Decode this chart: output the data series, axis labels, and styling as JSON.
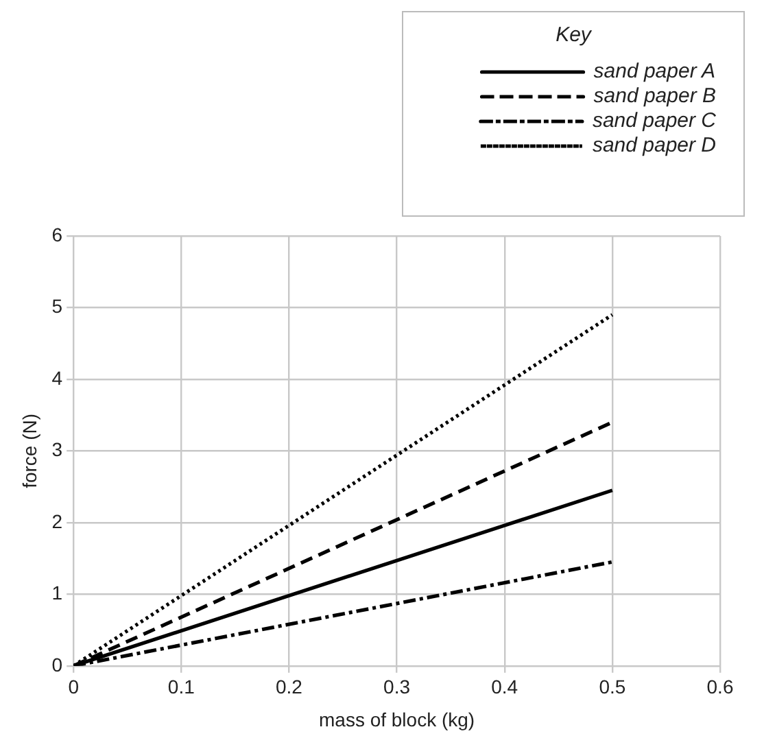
{
  "chart_data": {
    "type": "line",
    "xlabel": "mass of block (kg)",
    "ylabel": "force (N)",
    "legend_title": "Key",
    "x": [
      0,
      0.5
    ],
    "series": [
      {
        "name": "sand paper A",
        "color": "#000000",
        "values": [
          0,
          2.45
        ],
        "line_style": "solid"
      },
      {
        "name": "sand paper B",
        "color": "#000000",
        "values": [
          0,
          3.4
        ],
        "line_style": "dashed"
      },
      {
        "name": "sand paper C",
        "color": "#000000",
        "values": [
          0,
          1.45
        ],
        "line_style": "dashdot"
      },
      {
        "name": "sand paper D",
        "color": "#000000",
        "values": [
          0,
          4.9
        ],
        "line_style": "dotted"
      }
    ],
    "xlim": [
      0,
      0.6
    ],
    "xticks": [
      0,
      0.1,
      0.2,
      0.3,
      0.4,
      0.5,
      0.6
    ],
    "ylim": [
      0,
      6
    ],
    "yticks": [
      0,
      1,
      2,
      3,
      4,
      5,
      6
    ],
    "grid": true,
    "legend": "top right",
    "marker": "none"
  }
}
